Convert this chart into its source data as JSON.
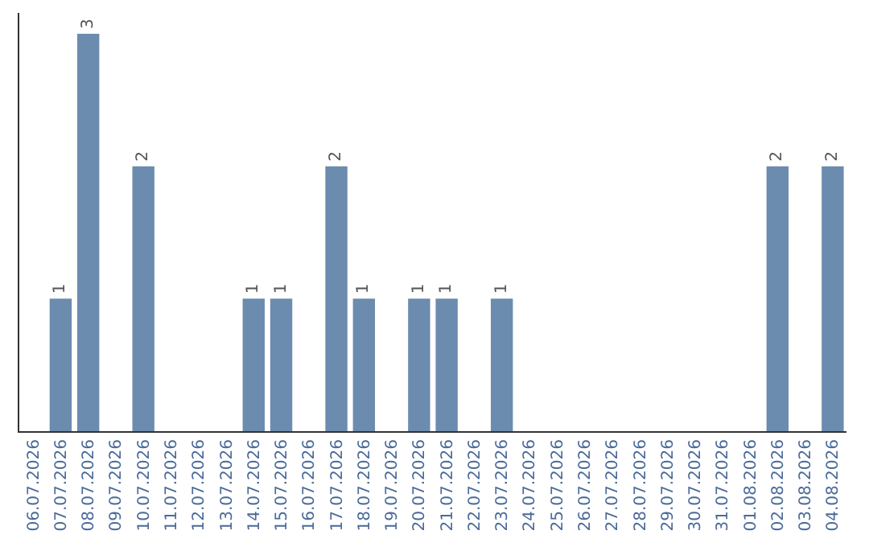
{
  "chart_data": {
    "type": "bar",
    "categories": [
      "06.07.2026",
      "07.07.2026",
      "08.07.2026",
      "09.07.2026",
      "10.07.2026",
      "11.07.2026",
      "12.07.2026",
      "13.07.2026",
      "14.07.2026",
      "15.07.2026",
      "16.07.2026",
      "17.07.2026",
      "18.07.2026",
      "19.07.2026",
      "20.07.2026",
      "21.07.2026",
      "22.07.2026",
      "23.07.2026",
      "24.07.2026",
      "25.07.2026",
      "26.07.2026",
      "27.07.2026",
      "28.07.2026",
      "29.07.2026",
      "30.07.2026",
      "31.07.2026",
      "01.08.2026",
      "02.08.2026",
      "03.08.2026",
      "04.08.2026"
    ],
    "values": [
      0,
      1,
      3,
      0,
      2,
      0,
      0,
      0,
      1,
      1,
      0,
      2,
      1,
      0,
      1,
      1,
      0,
      1,
      0,
      0,
      0,
      0,
      0,
      0,
      0,
      0,
      0,
      2,
      0,
      2
    ],
    "value_labels": [
      null,
      "1",
      "3",
      null,
      "2",
      null,
      null,
      null,
      "1",
      "1",
      null,
      "2",
      "1",
      null,
      "1",
      "1",
      null,
      "1",
      null,
      null,
      null,
      null,
      null,
      null,
      null,
      null,
      null,
      "2",
      null,
      "2"
    ],
    "color": "#6b8cae",
    "tick_labels": "x"
  }
}
